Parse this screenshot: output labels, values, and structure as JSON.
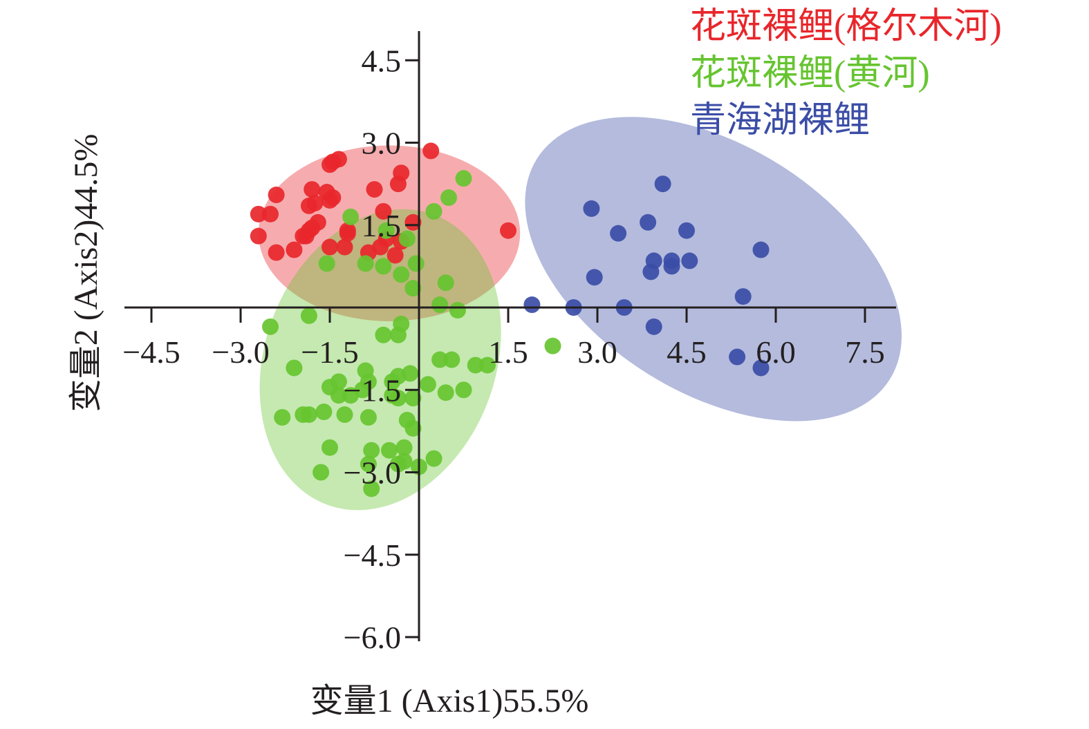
{
  "chart_data": {
    "type": "scatter",
    "xlabel": "变量1 (Axis1)55.5%",
    "ylabel": "变量2 (Axis2)44.5%",
    "x_ticks": [
      "−4.5",
      "−3.0",
      "−1.5",
      "1.5",
      "3.0",
      "4.5",
      "6.0",
      "7.5"
    ],
    "y_ticks": [
      "4.5",
      "3.0",
      "1.5",
      "−1.5",
      "−3.0",
      "−4.5",
      "−6.0"
    ],
    "x_tick_values": [
      -4.5,
      -3.0,
      -1.5,
      1.5,
      3.0,
      4.5,
      6.0,
      7.5
    ],
    "y_tick_values": [
      4.5,
      3.0,
      1.5,
      -1.5,
      -3.0,
      -4.5,
      -6.0
    ],
    "xlim": [
      -5.0,
      8.0
    ],
    "ylim": [
      -6.3,
      5.0
    ],
    "legend_position": "top-right",
    "grid": false,
    "series": [
      {
        "name": "花斑裸鲤(格尔木河)",
        "color": "#e8262b",
        "ellipse": {
          "cx": -0.5,
          "cy": 1.35,
          "rx": 2.2,
          "ry": 1.6,
          "rotate": 0
        },
        "points": [
          [
            -1.35,
            2.7
          ],
          [
            -1.45,
            2.65
          ],
          [
            -1.5,
            2.6
          ],
          [
            0.2,
            2.85
          ],
          [
            -0.3,
            2.45
          ],
          [
            -0.35,
            2.25
          ],
          [
            -1.8,
            2.15
          ],
          [
            -0.75,
            2.15
          ],
          [
            -1.55,
            2.1
          ],
          [
            -1.45,
            2.0
          ],
          [
            -2.4,
            2.05
          ],
          [
            -1.5,
            1.95
          ],
          [
            -1.75,
            1.9
          ],
          [
            -1.85,
            1.85
          ],
          [
            -0.6,
            1.75
          ],
          [
            -2.5,
            1.7
          ],
          [
            -2.7,
            1.7
          ],
          [
            -1.7,
            1.55
          ],
          [
            -1.8,
            1.45
          ],
          [
            -1.2,
            1.4
          ],
          [
            -1.85,
            1.4
          ],
          [
            -1.2,
            1.35
          ],
          [
            -0.1,
            1.55
          ],
          [
            -1.9,
            1.3
          ],
          [
            -2.7,
            1.3
          ],
          [
            -1.95,
            1.3
          ],
          [
            -0.55,
            1.25
          ],
          [
            1.5,
            1.4
          ],
          [
            -2.4,
            1.0
          ],
          [
            -2.1,
            1.05
          ],
          [
            -1.5,
            1.1
          ],
          [
            -1.25,
            1.1
          ],
          [
            -0.3,
            1.2
          ],
          [
            -0.65,
            1.1
          ],
          [
            -0.85,
            1.0
          ],
          [
            -0.4,
            0.95
          ]
        ]
      },
      {
        "name": "花斑裸鲤(黄河)",
        "color": "#66c430",
        "ellipse": {
          "cx": -0.65,
          "cy": -0.95,
          "rx": 2.6,
          "ry": 2.1,
          "rotate": -70
        },
        "points": [
          [
            0.75,
            2.35
          ],
          [
            0.5,
            2.0
          ],
          [
            -1.15,
            1.65
          ],
          [
            0.25,
            1.75
          ],
          [
            -0.55,
            1.4
          ],
          [
            -0.2,
            1.25
          ],
          [
            -1.55,
            0.8
          ],
          [
            -0.9,
            0.8
          ],
          [
            -0.6,
            0.75
          ],
          [
            -0.05,
            0.8
          ],
          [
            -0.3,
            0.6
          ],
          [
            -0.1,
            0.35
          ],
          [
            0.45,
            0.45
          ],
          [
            0.35,
            0.05
          ],
          [
            0.65,
            -0.05
          ],
          [
            -1.85,
            -0.15
          ],
          [
            -0.3,
            -0.3
          ],
          [
            -0.35,
            -0.5
          ],
          [
            -0.6,
            -0.5
          ],
          [
            -2.5,
            -0.35
          ],
          [
            2.25,
            -0.7
          ],
          [
            -2.1,
            -1.1
          ],
          [
            -0.35,
            -1.25
          ],
          [
            -0.15,
            -1.2
          ],
          [
            -0.45,
            -1.35
          ],
          [
            -0.9,
            -1.15
          ],
          [
            -1.5,
            -1.45
          ],
          [
            -1.35,
            -1.35
          ],
          [
            -0.85,
            -1.35
          ],
          [
            -1.15,
            -1.6
          ],
          [
            -0.95,
            -1.5
          ],
          [
            -0.45,
            -1.6
          ],
          [
            -0.35,
            -1.65
          ],
          [
            -0.1,
            -1.65
          ],
          [
            0.45,
            -1.55
          ],
          [
            0.75,
            -1.5
          ],
          [
            0.95,
            -1.05
          ],
          [
            0.55,
            -0.95
          ],
          [
            0.35,
            -0.95
          ],
          [
            1.15,
            -1.05
          ],
          [
            -1.95,
            -1.95
          ],
          [
            -1.85,
            -1.95
          ],
          [
            -1.6,
            -1.9
          ],
          [
            -1.25,
            -1.95
          ],
          [
            -0.85,
            -2.0
          ],
          [
            -0.2,
            -2.05
          ],
          [
            -0.1,
            -2.2
          ],
          [
            -2.3,
            -2.0
          ],
          [
            -0.5,
            -2.6
          ],
          [
            -0.25,
            -2.55
          ],
          [
            -0.8,
            -2.6
          ],
          [
            -1.5,
            -2.55
          ],
          [
            -0.25,
            -2.8
          ],
          [
            -0.35,
            -2.85
          ],
          [
            0.0,
            -2.9
          ],
          [
            -0.85,
            -2.85
          ],
          [
            0.25,
            -2.75
          ],
          [
            -1.65,
            -3.0
          ],
          [
            -0.8,
            -3.3
          ],
          [
            -1.35,
            -1.6
          ],
          [
            0.15,
            -1.4
          ]
        ]
      },
      {
        "name": "青海湖裸鲤",
        "color": "#3b4da6",
        "ellipse": {
          "cx": 4.95,
          "cy": 0.7,
          "rx": 3.5,
          "ry": 2.25,
          "rotate": 32
        },
        "points": [
          [
            4.1,
            2.25
          ],
          [
            2.9,
            1.8
          ],
          [
            3.85,
            1.55
          ],
          [
            4.5,
            1.4
          ],
          [
            3.35,
            1.35
          ],
          [
            5.75,
            1.05
          ],
          [
            3.95,
            0.85
          ],
          [
            4.25,
            0.85
          ],
          [
            4.55,
            0.85
          ],
          [
            4.25,
            0.75
          ],
          [
            3.9,
            0.65
          ],
          [
            2.95,
            0.55
          ],
          [
            5.45,
            0.2
          ],
          [
            1.9,
            0.05
          ],
          [
            2.6,
            0.0
          ],
          [
            3.45,
            0.0
          ],
          [
            3.95,
            -0.35
          ],
          [
            5.35,
            -0.9
          ],
          [
            5.75,
            -1.1
          ]
        ]
      }
    ]
  }
}
